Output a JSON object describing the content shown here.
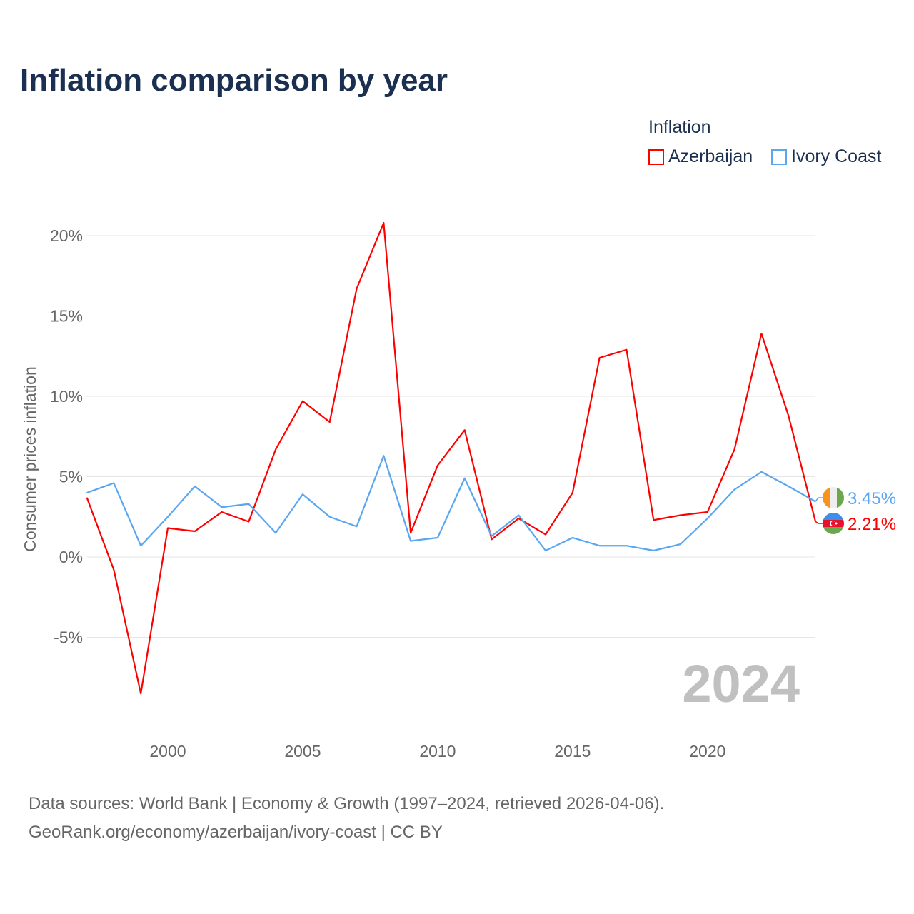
{
  "title": "Inflation comparison by year",
  "legend": {
    "title": "Inflation",
    "items": [
      {
        "name": "Azerbaijan",
        "color": "#ff0000"
      },
      {
        "name": "Ivory Coast",
        "color": "#5aa6f0"
      }
    ]
  },
  "footer": {
    "line1": "Data sources: World Bank | Economy & Growth (1997–2024, retrieved 2026-04-06).",
    "line2": "GeoRank.org/economy/azerbaijan/ivory-coast | CC BY"
  },
  "chart_data": {
    "type": "line",
    "title": "Inflation comparison by year",
    "xlabel": "",
    "ylabel": "Consumer prices inflation",
    "ylim": [
      -9,
      21
    ],
    "xlim": [
      1997,
      2024
    ],
    "grid": true,
    "legend_placement": "top-right",
    "year_watermark": "2024",
    "x_ticks": [
      2000,
      2005,
      2010,
      2015,
      2020
    ],
    "y_ticks": [
      {
        "v": 20,
        "label": "20%"
      },
      {
        "v": 15,
        "label": "15%"
      },
      {
        "v": 10,
        "label": "10%"
      },
      {
        "v": 5,
        "label": "5%"
      },
      {
        "v": 0,
        "label": "0%"
      },
      {
        "v": -5,
        "label": "-5%"
      }
    ],
    "x": [
      1997,
      1998,
      1999,
      2000,
      2001,
      2002,
      2003,
      2004,
      2005,
      2006,
      2007,
      2008,
      2009,
      2010,
      2011,
      2012,
      2013,
      2014,
      2015,
      2016,
      2017,
      2018,
      2019,
      2020,
      2021,
      2022,
      2023,
      2024
    ],
    "series": [
      {
        "name": "Azerbaijan",
        "color": "#ff0000",
        "end_label": "2.21%",
        "values": [
          3.7,
          -0.8,
          -8.5,
          1.8,
          1.6,
          2.8,
          2.2,
          6.7,
          9.7,
          8.4,
          16.7,
          20.8,
          1.5,
          5.7,
          7.9,
          1.1,
          2.4,
          1.4,
          4.0,
          12.4,
          12.9,
          2.3,
          2.6,
          2.8,
          6.7,
          13.9,
          8.8,
          2.21
        ]
      },
      {
        "name": "Ivory Coast",
        "color": "#5aa6f0",
        "end_label": "3.45%",
        "values": [
          4.0,
          4.6,
          0.7,
          2.5,
          4.4,
          3.1,
          3.3,
          1.5,
          3.9,
          2.5,
          1.9,
          6.3,
          1.0,
          1.2,
          4.9,
          1.3,
          2.6,
          0.4,
          1.2,
          0.7,
          0.7,
          0.4,
          0.8,
          2.4,
          4.2,
          5.3,
          4.4,
          3.45
        ]
      }
    ]
  }
}
